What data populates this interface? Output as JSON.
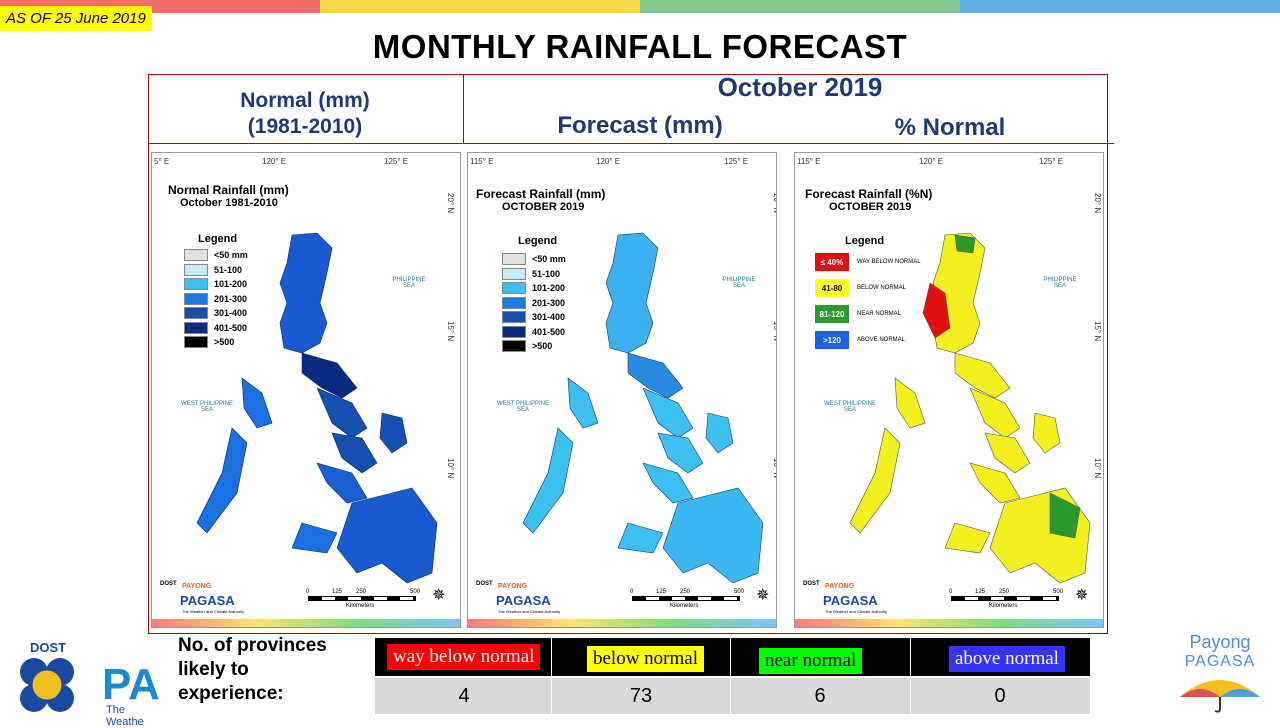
{
  "as_of": "AS OF 25 June 2019",
  "title": "MONTHLY RAINFALL FORECAST",
  "top_bar_colors": [
    "#f26b6b",
    "#f4d94a",
    "#7fc98f",
    "#5fb0e0"
  ],
  "header": {
    "normal_line1": "Normal (mm)",
    "normal_line2": "(1981-2010)",
    "month": "October 2019",
    "forecast": "Forecast (mm)",
    "percent": "% Normal"
  },
  "maps": {
    "coords": {
      "lon1": "120° E",
      "lon2": "125° E",
      "lon_left_a": "5° E",
      "lon_left_b": "115° E",
      "lat1": "20° N",
      "lat2": "15° N",
      "lat3": "10° N"
    },
    "seas": {
      "ph_sea": "PHILIPPINE\nSEA",
      "wph_sea": "WEST PHILIPPINE\nSEA"
    },
    "normal": {
      "title1": "Normal Rainfall (mm)",
      "title2": "October 1981-2010",
      "legend_title": "Legend",
      "legend": [
        {
          "label": "<50 mm",
          "color": "#e0e0e0"
        },
        {
          "label": "51-100",
          "color": "#c6ecfa"
        },
        {
          "label": "101-200",
          "color": "#3cc0f0"
        },
        {
          "label": "201-300",
          "color": "#1a7ae0"
        },
        {
          "label": "301-400",
          "color": "#1550b0"
        },
        {
          "label": "401-500",
          "color": "#0a2a80"
        },
        {
          "label": ">500",
          "color": "#000000"
        }
      ]
    },
    "forecast": {
      "title1": "Forecast Rainfall (mm)",
      "title2": "OCTOBER 2019",
      "legend_title": "Legend",
      "legend": [
        {
          "label": "<50 mm",
          "color": "#e0e0e0"
        },
        {
          "label": "51-100",
          "color": "#c6ecfa"
        },
        {
          "label": "101-200",
          "color": "#3cc0f0"
        },
        {
          "label": "201-300",
          "color": "#1a7ae0"
        },
        {
          "label": "301-400",
          "color": "#1550b0"
        },
        {
          "label": "401-500",
          "color": "#0a2a80"
        },
        {
          "label": ">500",
          "color": "#000000"
        }
      ]
    },
    "percent": {
      "title1": "Forecast Rainfall (%N)",
      "title2": "OCTOBER 2019",
      "legend_title": "Legend",
      "legend": [
        {
          "box": "≤ 40%",
          "label": "WAY BELOW NORMAL",
          "color": "#e01010",
          "text_color": "#ffffff"
        },
        {
          "box": "41-80",
          "label": "BELOW NORMAL",
          "color": "#ffff20",
          "text_color": "#000000"
        },
        {
          "box": "81-120",
          "label": "NEAR NORMAL",
          "color": "#2a9a2a",
          "text_color": "#ffffff"
        },
        {
          "box": ">120",
          "label": "ABOVE NORMAL",
          "color": "#1a60e0",
          "text_color": "#ffffff"
        }
      ]
    },
    "logo": {
      "dost": "DOST",
      "payong": "PAYONG",
      "pagasa": "PAGASA",
      "tag": "The Weather and Climate Authority"
    },
    "scale": {
      "s0": "0",
      "s1": "125",
      "s2": "250",
      "s3": "500",
      "unit": "Kilometers"
    }
  },
  "provinces_label": "No. of provinces likely to experience:",
  "categories": [
    {
      "label": "way below normal",
      "bg": "#ff0000",
      "fg": "#ffffff",
      "count": "4"
    },
    {
      "label": "below normal",
      "bg": "#ffff00",
      "fg": "#000000",
      "count": "73"
    },
    {
      "label": "near normal",
      "bg": "#00ff00",
      "fg": "#000000",
      "count": "6"
    },
    {
      "label": "above normal",
      "bg": "#3333ff",
      "fg": "#ffffff",
      "count": "0"
    }
  ],
  "bottom_logo": {
    "dost": "DOST",
    "pa": "PA",
    "tag": "The Weathe"
  },
  "payong_right": {
    "line1": "Payong",
    "line2": "PAGASA"
  }
}
